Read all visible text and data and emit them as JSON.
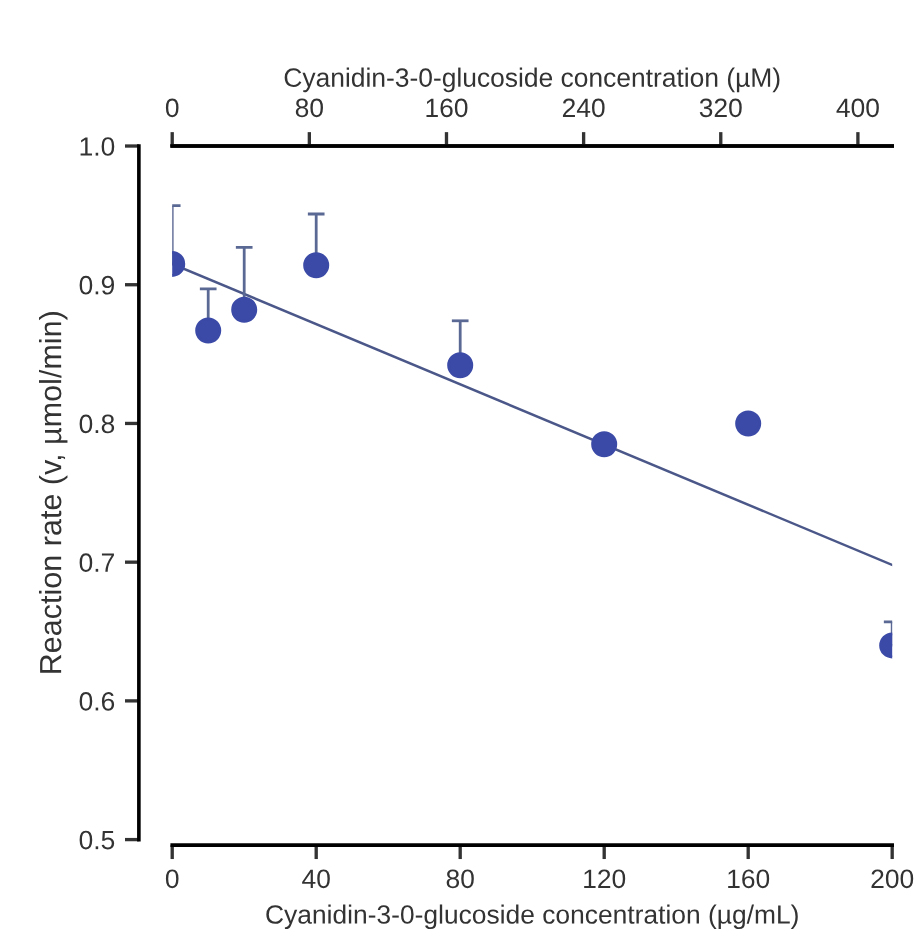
{
  "chart_data": {
    "type": "scatter",
    "xlabel": "Cyanidin-3-0-glucoside concentration (µg/mL)",
    "x2label": "Cyanidin-3-0-glucoside concentration (µM)",
    "ylabel": "Reaction rate (v, µmol/min)",
    "xlim": [
      0,
      200
    ],
    "xticks": [
      0,
      40,
      80,
      120,
      160,
      200
    ],
    "x2lim": [
      0,
      420
    ],
    "x2ticks": [
      0,
      80,
      160,
      240,
      320,
      400
    ],
    "ylim": [
      0.5,
      1.0
    ],
    "yticks": [
      {
        "value": 0.5,
        "label": "0.5"
      },
      {
        "value": 0.6,
        "label": "0.6"
      },
      {
        "value": 0.7,
        "label": "0.7"
      },
      {
        "value": 0.8,
        "label": "0.8"
      },
      {
        "value": 0.9,
        "label": "0.9"
      },
      {
        "value": 1.0,
        "label": "1.0"
      }
    ],
    "grid": false,
    "legend": false,
    "series": [
      {
        "marker": "circle",
        "color": "#3b4aa6",
        "x": [
          0,
          10,
          20,
          40,
          80,
          120,
          160,
          200
        ],
        "values": [
          0.915,
          0.867,
          0.882,
          0.914,
          0.842,
          0.785,
          0.8,
          0.64
        ],
        "errors": [
          [
            0.915,
            0.957
          ],
          [
            0.867,
            0.897
          ],
          [
            0.882,
            0.927
          ],
          [
            0.914,
            0.951
          ],
          [
            0.842,
            0.874
          ],
          [
            0.785,
            0.791
          ],
          null,
          [
            0.64,
            0.657
          ]
        ]
      },
      {
        "type": "line",
        "color": "#4a5788",
        "x": [
          0,
          200
        ],
        "values": [
          0.915,
          0.698
        ],
        "line_style": "solid",
        "marker": "none"
      }
    ]
  }
}
